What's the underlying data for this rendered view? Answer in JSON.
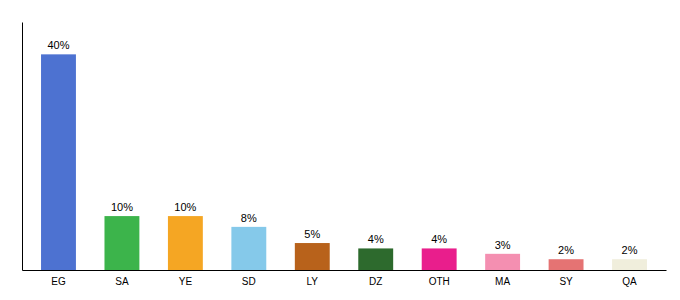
{
  "chart_data": {
    "type": "bar",
    "categories": [
      "EG",
      "SA",
      "YE",
      "SD",
      "LY",
      "DZ",
      "OTH",
      "MA",
      "SY",
      "QA"
    ],
    "values": [
      40,
      10,
      10,
      8,
      5,
      4,
      4,
      3,
      2,
      2
    ],
    "value_labels": [
      "40%",
      "10%",
      "10%",
      "8%",
      "5%",
      "4%",
      "4%",
      "3%",
      "2%",
      "2%"
    ],
    "colors": [
      "#4d72d1",
      "#3cb44b",
      "#f5a623",
      "#85c9ea",
      "#b8621b",
      "#2d6a2d",
      "#e91e8c",
      "#f48fb1",
      "#e57373",
      "#f0eedc"
    ],
    "ylim": [
      0,
      46
    ],
    "data_labels": true,
    "tick_labels": "x",
    "grid": false
  }
}
